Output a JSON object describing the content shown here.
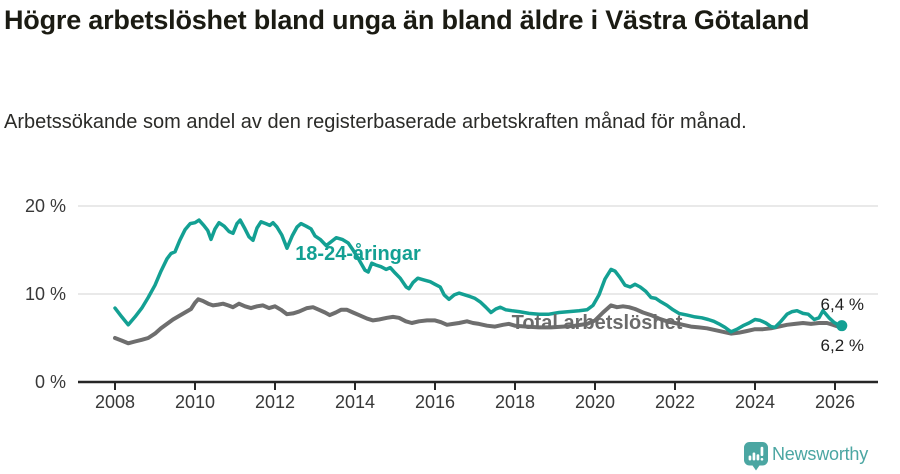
{
  "title": "Högre arbetslöshet bland unga än bland äldre i Västra Götaland",
  "subtitle": "Arbetssökande som andel av den registerbaserade arbetskraften månad för månad.",
  "chart_data": {
    "type": "line",
    "title": "Högre arbetslöshet bland unga än bland äldre i Västra Götaland",
    "xlabel": "",
    "ylabel": "",
    "xlim": [
      2007.5,
      2027.1
    ],
    "ylim": [
      0,
      20
    ],
    "grid": true,
    "x_ticks": [
      2008,
      2010,
      2012,
      2014,
      2016,
      2018,
      2020,
      2022,
      2024,
      2026
    ],
    "y_ticks": [
      {
        "value": 20,
        "label": "20 %"
      },
      {
        "value": 10,
        "label": "10 %"
      },
      {
        "value": 0,
        "label": "0 %"
      }
    ],
    "grid_color": "#dcdcdc",
    "axis_color": "#262626",
    "series": [
      {
        "name": "18-24-åringar",
        "color": "#13a093",
        "end_label": "6,4 %",
        "end_value": 6.4,
        "points": [
          [
            2008.0,
            8.4
          ],
          [
            2008.17,
            7.4
          ],
          [
            2008.33,
            6.5
          ],
          [
            2008.5,
            7.4
          ],
          [
            2008.67,
            8.4
          ],
          [
            2008.83,
            9.6
          ],
          [
            2009.0,
            11.0
          ],
          [
            2009.15,
            12.6
          ],
          [
            2009.3,
            14.0
          ],
          [
            2009.4,
            14.6
          ],
          [
            2009.5,
            14.8
          ],
          [
            2009.62,
            16.1
          ],
          [
            2009.75,
            17.3
          ],
          [
            2009.88,
            18.0
          ],
          [
            2010.0,
            18.1
          ],
          [
            2010.1,
            18.4
          ],
          [
            2010.22,
            17.8
          ],
          [
            2010.32,
            17.2
          ],
          [
            2010.4,
            16.2
          ],
          [
            2010.5,
            17.4
          ],
          [
            2010.6,
            18.1
          ],
          [
            2010.73,
            17.7
          ],
          [
            2010.85,
            17.1
          ],
          [
            2010.95,
            16.9
          ],
          [
            2011.05,
            18.0
          ],
          [
            2011.13,
            18.4
          ],
          [
            2011.25,
            17.4
          ],
          [
            2011.35,
            16.5
          ],
          [
            2011.45,
            16.1
          ],
          [
            2011.55,
            17.5
          ],
          [
            2011.65,
            18.2
          ],
          [
            2011.77,
            18.0
          ],
          [
            2011.87,
            17.8
          ],
          [
            2011.95,
            18.1
          ],
          [
            2012.05,
            17.6
          ],
          [
            2012.17,
            16.7
          ],
          [
            2012.3,
            15.2
          ],
          [
            2012.43,
            16.6
          ],
          [
            2012.55,
            17.6
          ],
          [
            2012.65,
            18.0
          ],
          [
            2012.78,
            17.7
          ],
          [
            2012.9,
            17.4
          ],
          [
            2013.0,
            16.6
          ],
          [
            2013.13,
            16.2
          ],
          [
            2013.28,
            15.5
          ],
          [
            2013.42,
            16.0
          ],
          [
            2013.53,
            16.4
          ],
          [
            2013.68,
            16.2
          ],
          [
            2013.83,
            15.8
          ],
          [
            2013.95,
            15.0
          ],
          [
            2014.1,
            13.9
          ],
          [
            2014.25,
            12.7
          ],
          [
            2014.33,
            12.5
          ],
          [
            2014.42,
            13.5
          ],
          [
            2014.52,
            13.3
          ],
          [
            2014.65,
            13.1
          ],
          [
            2014.78,
            12.8
          ],
          [
            2014.88,
            13.0
          ],
          [
            2015.0,
            12.4
          ],
          [
            2015.13,
            11.8
          ],
          [
            2015.28,
            10.8
          ],
          [
            2015.35,
            10.6
          ],
          [
            2015.45,
            11.3
          ],
          [
            2015.57,
            11.8
          ],
          [
            2015.72,
            11.6
          ],
          [
            2015.88,
            11.4
          ],
          [
            2016.0,
            11.1
          ],
          [
            2016.13,
            10.8
          ],
          [
            2016.23,
            9.9
          ],
          [
            2016.35,
            9.4
          ],
          [
            2016.48,
            9.9
          ],
          [
            2016.6,
            10.1
          ],
          [
            2016.75,
            9.9
          ],
          [
            2016.88,
            9.7
          ],
          [
            2017.0,
            9.5
          ],
          [
            2017.13,
            9.1
          ],
          [
            2017.27,
            8.5
          ],
          [
            2017.4,
            7.9
          ],
          [
            2017.52,
            8.3
          ],
          [
            2017.63,
            8.5
          ],
          [
            2017.77,
            8.2
          ],
          [
            2017.92,
            8.1
          ],
          [
            2018.1,
            8.0
          ],
          [
            2018.35,
            7.8
          ],
          [
            2018.6,
            7.7
          ],
          [
            2018.85,
            7.7
          ],
          [
            2019.1,
            7.9
          ],
          [
            2019.35,
            8.0
          ],
          [
            2019.6,
            8.1
          ],
          [
            2019.8,
            8.2
          ],
          [
            2019.95,
            8.7
          ],
          [
            2020.1,
            9.9
          ],
          [
            2020.25,
            11.7
          ],
          [
            2020.4,
            12.8
          ],
          [
            2020.5,
            12.6
          ],
          [
            2020.62,
            11.9
          ],
          [
            2020.75,
            11.0
          ],
          [
            2020.88,
            10.8
          ],
          [
            2021.0,
            11.1
          ],
          [
            2021.13,
            10.8
          ],
          [
            2021.27,
            10.3
          ],
          [
            2021.4,
            9.6
          ],
          [
            2021.52,
            9.5
          ],
          [
            2021.65,
            9.1
          ],
          [
            2021.8,
            8.7
          ],
          [
            2021.95,
            8.2
          ],
          [
            2022.1,
            7.8
          ],
          [
            2022.3,
            7.6
          ],
          [
            2022.5,
            7.4
          ],
          [
            2022.67,
            7.3
          ],
          [
            2022.83,
            7.1
          ],
          [
            2022.97,
            6.9
          ],
          [
            2023.1,
            6.6
          ],
          [
            2023.25,
            6.2
          ],
          [
            2023.4,
            5.7
          ],
          [
            2023.55,
            6.0
          ],
          [
            2023.7,
            6.4
          ],
          [
            2023.85,
            6.7
          ],
          [
            2024.0,
            7.1
          ],
          [
            2024.13,
            7.0
          ],
          [
            2024.27,
            6.7
          ],
          [
            2024.4,
            6.3
          ],
          [
            2024.5,
            6.2
          ],
          [
            2024.65,
            6.9
          ],
          [
            2024.8,
            7.7
          ],
          [
            2024.93,
            8.0
          ],
          [
            2025.05,
            8.1
          ],
          [
            2025.2,
            7.8
          ],
          [
            2025.33,
            7.7
          ],
          [
            2025.48,
            7.1
          ],
          [
            2025.6,
            7.3
          ],
          [
            2025.7,
            8.1
          ],
          [
            2025.85,
            7.3
          ],
          [
            2025.97,
            6.8
          ],
          [
            2026.08,
            6.5
          ],
          [
            2026.17,
            6.4
          ]
        ]
      },
      {
        "name": "Total arbetslöshet",
        "color": "#6e6e6e",
        "end_label": "6,2 %",
        "end_value": 6.2,
        "points": [
          [
            2008.0,
            5.0
          ],
          [
            2008.17,
            4.7
          ],
          [
            2008.33,
            4.4
          ],
          [
            2008.5,
            4.6
          ],
          [
            2008.67,
            4.8
          ],
          [
            2008.83,
            5.0
          ],
          [
            2009.0,
            5.5
          ],
          [
            2009.15,
            6.1
          ],
          [
            2009.3,
            6.6
          ],
          [
            2009.45,
            7.1
          ],
          [
            2009.6,
            7.5
          ],
          [
            2009.75,
            7.9
          ],
          [
            2009.9,
            8.3
          ],
          [
            2010.0,
            9.0
          ],
          [
            2010.08,
            9.4
          ],
          [
            2010.2,
            9.2
          ],
          [
            2010.33,
            8.9
          ],
          [
            2010.45,
            8.7
          ],
          [
            2010.58,
            8.8
          ],
          [
            2010.7,
            8.9
          ],
          [
            2010.83,
            8.7
          ],
          [
            2010.95,
            8.5
          ],
          [
            2011.1,
            8.9
          ],
          [
            2011.25,
            8.6
          ],
          [
            2011.4,
            8.4
          ],
          [
            2011.55,
            8.6
          ],
          [
            2011.7,
            8.7
          ],
          [
            2011.85,
            8.4
          ],
          [
            2012.0,
            8.6
          ],
          [
            2012.15,
            8.2
          ],
          [
            2012.3,
            7.7
          ],
          [
            2012.45,
            7.8
          ],
          [
            2012.6,
            8.0
          ],
          [
            2012.8,
            8.4
          ],
          [
            2012.95,
            8.5
          ],
          [
            2013.1,
            8.2
          ],
          [
            2013.25,
            7.9
          ],
          [
            2013.37,
            7.6
          ],
          [
            2013.52,
            7.9
          ],
          [
            2013.65,
            8.2
          ],
          [
            2013.8,
            8.2
          ],
          [
            2013.95,
            7.9
          ],
          [
            2014.1,
            7.6
          ],
          [
            2014.3,
            7.2
          ],
          [
            2014.45,
            7.0
          ],
          [
            2014.6,
            7.1
          ],
          [
            2014.8,
            7.3
          ],
          [
            2014.95,
            7.4
          ],
          [
            2015.1,
            7.3
          ],
          [
            2015.27,
            6.9
          ],
          [
            2015.42,
            6.7
          ],
          [
            2015.6,
            6.9
          ],
          [
            2015.8,
            7.0
          ],
          [
            2016.0,
            7.0
          ],
          [
            2016.15,
            6.8
          ],
          [
            2016.3,
            6.5
          ],
          [
            2016.45,
            6.6
          ],
          [
            2016.6,
            6.7
          ],
          [
            2016.8,
            6.9
          ],
          [
            2016.95,
            6.7
          ],
          [
            2017.1,
            6.6
          ],
          [
            2017.3,
            6.4
          ],
          [
            2017.5,
            6.3
          ],
          [
            2017.7,
            6.5
          ],
          [
            2017.85,
            6.6
          ],
          [
            2018.0,
            6.4
          ],
          [
            2018.3,
            6.3
          ],
          [
            2018.6,
            6.2
          ],
          [
            2018.9,
            6.2
          ],
          [
            2019.2,
            6.3
          ],
          [
            2019.5,
            6.4
          ],
          [
            2019.8,
            6.6
          ],
          [
            2020.0,
            7.0
          ],
          [
            2020.2,
            7.9
          ],
          [
            2020.4,
            8.7
          ],
          [
            2020.55,
            8.5
          ],
          [
            2020.7,
            8.6
          ],
          [
            2020.85,
            8.5
          ],
          [
            2021.0,
            8.3
          ],
          [
            2021.2,
            7.9
          ],
          [
            2021.4,
            7.6
          ],
          [
            2021.6,
            7.2
          ],
          [
            2021.8,
            6.9
          ],
          [
            2022.0,
            6.7
          ],
          [
            2022.2,
            6.5
          ],
          [
            2022.4,
            6.3
          ],
          [
            2022.6,
            6.2
          ],
          [
            2022.8,
            6.1
          ],
          [
            2023.0,
            5.9
          ],
          [
            2023.2,
            5.7
          ],
          [
            2023.4,
            5.5
          ],
          [
            2023.6,
            5.6
          ],
          [
            2023.8,
            5.8
          ],
          [
            2024.0,
            6.0
          ],
          [
            2024.2,
            6.0
          ],
          [
            2024.4,
            6.1
          ],
          [
            2024.6,
            6.3
          ],
          [
            2024.8,
            6.5
          ],
          [
            2025.0,
            6.6
          ],
          [
            2025.2,
            6.7
          ],
          [
            2025.4,
            6.6
          ],
          [
            2025.6,
            6.7
          ],
          [
            2025.8,
            6.7
          ],
          [
            2025.95,
            6.5
          ],
          [
            2026.08,
            6.3
          ],
          [
            2026.17,
            6.2
          ]
        ]
      }
    ],
    "legend_position": "inline-labels"
  },
  "footer": {
    "brand": "Newsworthy",
    "logo_color": "#4ba6a2"
  }
}
